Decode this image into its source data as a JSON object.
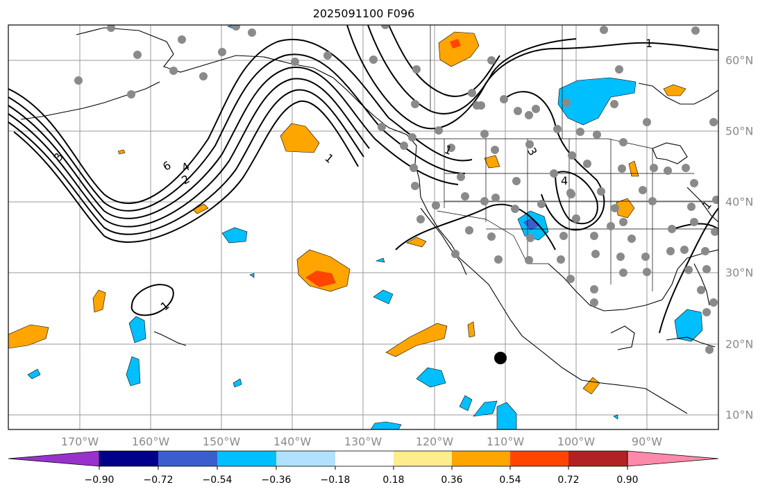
{
  "title": "2025091100 F096",
  "axes": {
    "lon_labels": [
      "170°W",
      "160°W",
      "150°W",
      "140°W",
      "130°W",
      "120°W",
      "110°W",
      "100°W",
      "90°W"
    ],
    "lat_labels": [
      "60°N",
      "50°N",
      "40°N",
      "30°N",
      "20°N",
      "10°N"
    ]
  },
  "colorbar": {
    "ticks": [
      "−0.90",
      "−0.72",
      "−0.54",
      "−0.36",
      "−0.18",
      "0.18",
      "0.36",
      "0.54",
      "0.72",
      "0.90"
    ],
    "colors": [
      "#9932cc",
      "#00008b",
      "#3a5fcd",
      "#00bfff",
      "#b0e2ff",
      "#ffffff",
      "#ffec8b",
      "#ffa500",
      "#ff4500",
      "#b22222",
      "#ff89aa"
    ]
  },
  "contour_labels": [
    "1",
    "1",
    "1",
    "2",
    "3",
    "4",
    "6",
    "3",
    "4",
    "1",
    "1"
  ],
  "map_data": {
    "extent": {
      "lon_min": -180,
      "lon_max": -80,
      "lat_min": 8,
      "lat_max": 65
    },
    "gridlines": true
  }
}
